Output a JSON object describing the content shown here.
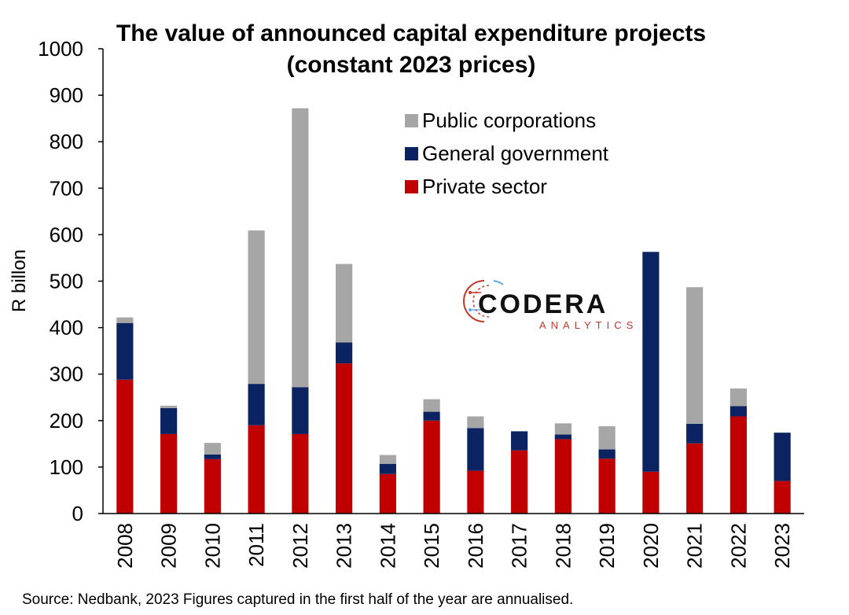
{
  "chart_data": {
    "type": "bar",
    "stacked": true,
    "title_line1": "The value of announced capital expenditure projects",
    "title_line2": "(constant 2023 prices)",
    "ylabel": "R billon",
    "xlabel": "",
    "ylim": [
      0,
      1000
    ],
    "yticks": [
      "0",
      "100",
      "200",
      "300",
      "400",
      "500",
      "600",
      "700",
      "800",
      "900",
      "1000"
    ],
    "categories": [
      "2008",
      "2009",
      "2010",
      "2011",
      "2012",
      "2013",
      "2014",
      "2015",
      "2016",
      "2017",
      "2018",
      "2019",
      "2020",
      "2021",
      "2022",
      "2023"
    ],
    "series": [
      {
        "name": "Private sector",
        "color": "#c00000",
        "values": [
          288,
          171,
          117,
          190,
          171,
          323,
          85,
          200,
          92,
          136,
          160,
          118,
          90,
          151,
          209,
          70
        ]
      },
      {
        "name": "General government",
        "color": "#0b2461",
        "values": [
          122,
          56,
          10,
          89,
          101,
          45,
          22,
          19,
          92,
          41,
          10,
          20,
          473,
          42,
          22,
          104
        ]
      },
      {
        "name": "Public corporations",
        "color": "#a6a6a6",
        "values": [
          12,
          5,
          25,
          330,
          600,
          169,
          19,
          27,
          25,
          0,
          24,
          50,
          0,
          294,
          38,
          0
        ]
      }
    ],
    "legend_order": [
      "Public corporations",
      "General government",
      "Private sector"
    ],
    "legend_position": "upper-center",
    "grid": false
  },
  "logo": {
    "main": "CODERA",
    "sub": "ANALYTICS",
    "icon": "circuit-circle-icon"
  },
  "source": "Source: Nedbank, 2023 Figures captured in the first half of the year are annualised."
}
